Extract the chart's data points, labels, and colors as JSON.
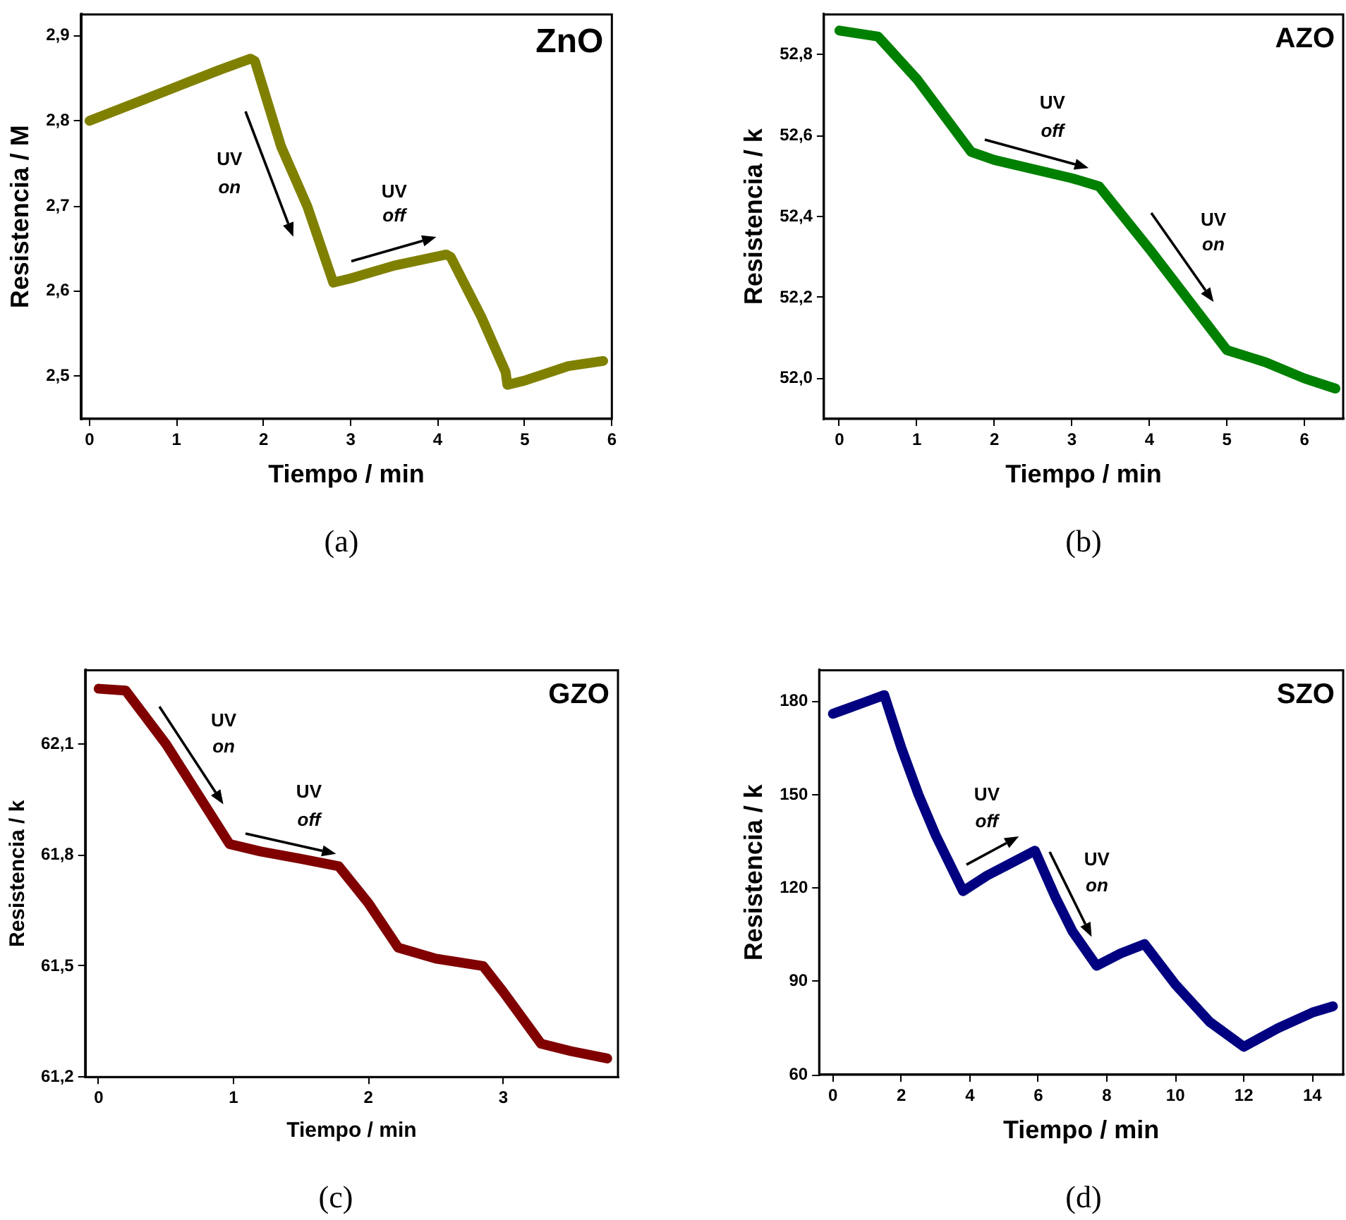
{
  "chart_data": [
    {
      "type": "line",
      "title": "ZnO",
      "xlabel": "Tiempo / min",
      "ylabel": "Resistencia / M",
      "color": "#808000",
      "x": [
        0,
        0.5,
        1,
        1.5,
        1.85,
        1.9,
        2.2,
        2.5,
        2.8,
        3,
        3.5,
        4.1,
        4.15,
        4.5,
        4.78,
        4.8,
        5,
        5.5,
        5.9
      ],
      "values": [
        2.8,
        2.82,
        2.84,
        2.86,
        2.873,
        2.87,
        2.77,
        2.7,
        2.61,
        2.615,
        2.63,
        2.643,
        2.64,
        2.57,
        2.505,
        2.49,
        2.495,
        2.512,
        2.518
      ],
      "xlim": [
        -0.1,
        6
      ],
      "xticks": [
        0,
        1,
        2,
        3,
        4,
        5,
        6
      ],
      "ylim": [
        2.45,
        2.925
      ],
      "yticks": [
        {
          "value": 2.5,
          "label": "2,5"
        },
        {
          "value": 2.6,
          "label": "2,6"
        },
        {
          "value": 2.7,
          "label": "2,7"
        },
        {
          "value": 2.8,
          "label": "2,8"
        },
        {
          "value": 2.9,
          "label": "2,9"
        }
      ],
      "grid": false,
      "legend": false,
      "annotations": [
        "UV",
        "on",
        "UV",
        "off",
        "(a)"
      ]
    },
    {
      "type": "line",
      "title": "AZO",
      "xlabel": "Tiempo / min",
      "ylabel": "Resistencia / k",
      "color": "#008000",
      "x": [
        0,
        0.5,
        1,
        1.7,
        2,
        3,
        3.35,
        4,
        5,
        5.5,
        6,
        6.4
      ],
      "values": [
        52.86,
        52.845,
        52.74,
        52.56,
        52.54,
        52.495,
        52.475,
        52.32,
        52.07,
        52.04,
        52.0,
        51.975
      ],
      "xlim": [
        -0.2,
        6.5
      ],
      "xticks": [
        0,
        1,
        2,
        3,
        4,
        5,
        6
      ],
      "ylim": [
        51.9,
        52.9
      ],
      "yticks": [
        {
          "value": 52.0,
          "label": "52,0"
        },
        {
          "value": 52.2,
          "label": "52,2"
        },
        {
          "value": 52.4,
          "label": "52,4"
        },
        {
          "value": 52.6,
          "label": "52,6"
        },
        {
          "value": 52.8,
          "label": "52,8"
        }
      ],
      "grid": false,
      "legend": false,
      "annotations": [
        "UV",
        "off",
        "UV",
        "on",
        "(b)"
      ]
    },
    {
      "type": "line",
      "title": "GZO",
      "xlabel": "Tiempo / min",
      "ylabel": "Resistencia / k",
      "color": "#800000",
      "x": [
        0,
        0.2,
        0.5,
        0.97,
        1.2,
        1.5,
        1.78,
        2,
        2.22,
        2.5,
        2.85,
        3.0,
        3.28,
        3.5,
        3.77
      ],
      "values": [
        62.25,
        62.245,
        62.1,
        61.83,
        61.81,
        61.79,
        61.77,
        61.67,
        61.55,
        61.52,
        61.5,
        61.43,
        61.29,
        61.27,
        61.25
      ],
      "xlim": [
        -0.1,
        3.85
      ],
      "xticks": [
        0,
        1,
        2,
        3
      ],
      "ylim": [
        61.2,
        62.3
      ],
      "yticks": [
        {
          "value": 61.2,
          "label": "61,2"
        },
        {
          "value": 61.5,
          "label": "61,5"
        },
        {
          "value": 61.8,
          "label": "61,8"
        },
        {
          "value": 62.1,
          "label": "62,1"
        }
      ],
      "grid": false,
      "legend": false,
      "annotations": [
        "UV",
        "on",
        "UV",
        "off",
        "(c)"
      ]
    },
    {
      "type": "line",
      "title": "SZO",
      "xlabel": "Tiempo / min",
      "ylabel": "Resistencia / k",
      "color": "#000080",
      "x": [
        0,
        0.5,
        1,
        1.5,
        2,
        2.5,
        3,
        3.8,
        4.5,
        5.2,
        5.9,
        6.5,
        7,
        7.7,
        8.4,
        9.1,
        10,
        11,
        12,
        13,
        14,
        14.6
      ],
      "values": [
        176,
        178,
        180,
        182,
        165,
        150,
        137,
        119,
        124,
        128,
        132,
        117,
        106,
        95,
        99,
        102,
        89,
        77,
        69,
        75,
        80,
        82
      ],
      "xlim": [
        -0.4,
        14.9
      ],
      "xticks": [
        0,
        2,
        4,
        6,
        8,
        10,
        12,
        14
      ],
      "ylim": [
        60,
        190
      ],
      "yticks": [
        60,
        90,
        120,
        150,
        180
      ],
      "grid": false,
      "legend": false,
      "annotations": [
        "UV",
        "off",
        "UV",
        "on",
        "(d)"
      ]
    }
  ]
}
